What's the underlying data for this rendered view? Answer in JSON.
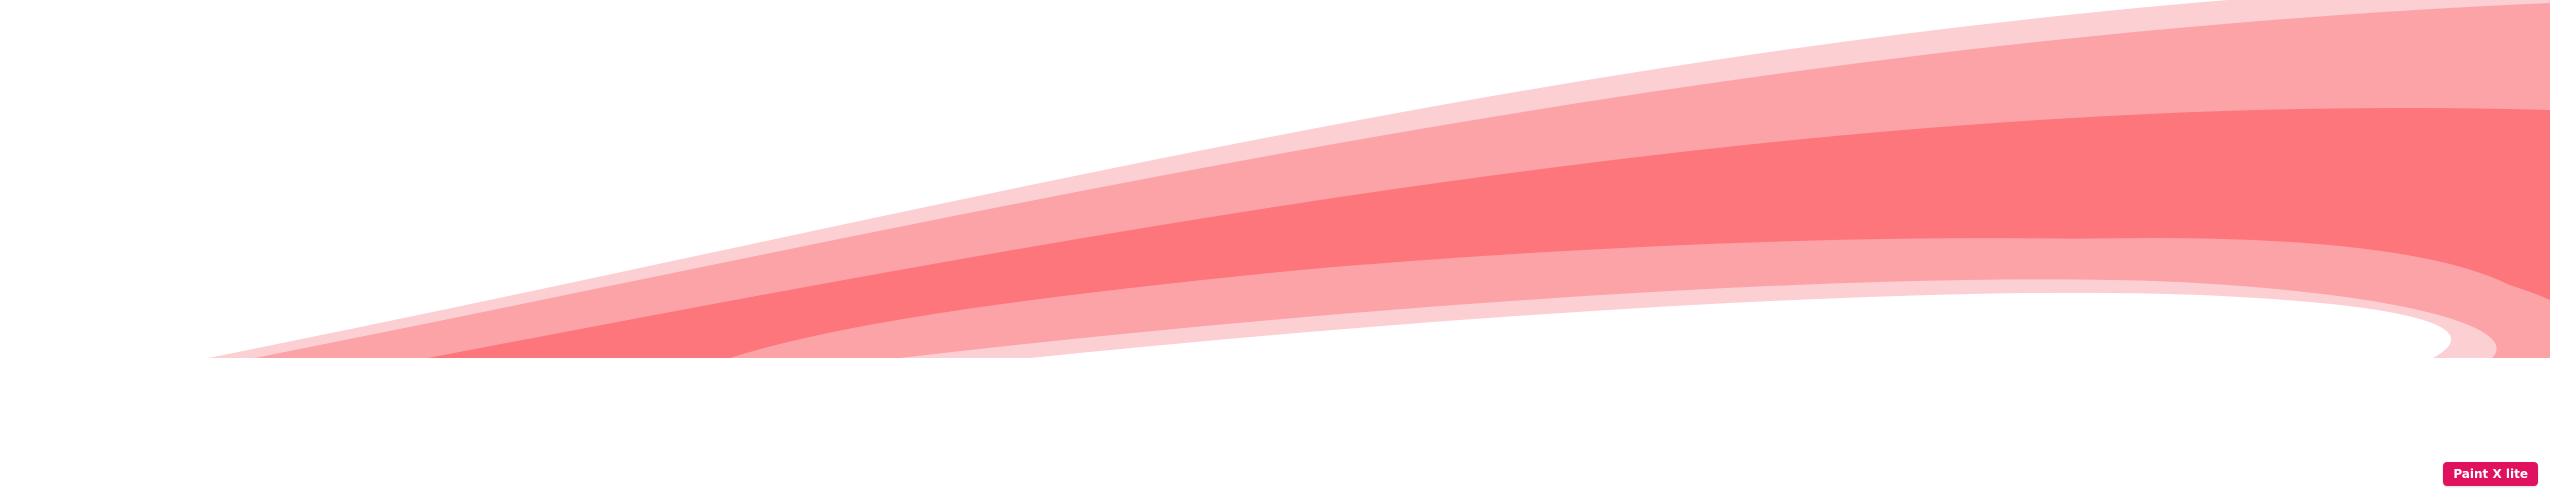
{
  "watermark": {
    "text": "Paint X lite"
  },
  "colors": {
    "background": "#ffffff",
    "band_lightest": "#fccfd2",
    "band_light": "#fca3a8",
    "band_main": "#fd767b",
    "badge_background": "#e0115f",
    "badge_text": "#ffffff"
  }
}
